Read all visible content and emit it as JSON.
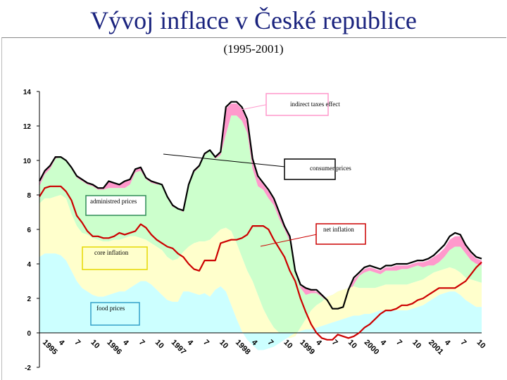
{
  "title": "Vývoj inflace v České republice",
  "subtitle": "(1995-2001)",
  "chart_data": {
    "type": "area",
    "x_ticks": [
      "1995",
      "4",
      "7",
      "10",
      "1996",
      "4",
      "7",
      "10",
      "1997",
      "4",
      "7",
      "10",
      "1998",
      "4",
      "7",
      "10",
      "1999",
      "4",
      "7",
      "10",
      "2000",
      "4",
      "7",
      "10",
      "2001",
      "4",
      "7",
      "10"
    ],
    "y_ticks": [
      "14",
      "12",
      "10",
      "8",
      "6",
      "4",
      "2",
      "0",
      "-2"
    ],
    "ylim": [
      -2,
      14
    ],
    "n_points": 84,
    "annotations": [
      "indirect taxes effect",
      "consumer prices",
      "administred prices",
      "net inflation",
      "core inflation",
      "food prices"
    ],
    "colors": {
      "food": "#ccffff",
      "core": "#ffffcc",
      "admin": "#ccffcc",
      "tax": "#ff99cc",
      "consumer": "#000000",
      "net": "#cc0000",
      "label_border_blue": "#33a0c8",
      "label_border_yellow": "#e6d800",
      "label_border_green": "#2e8b57",
      "label_border_pink": "#ff99cc",
      "label_border_red": "#cc0000"
    },
    "series": [
      {
        "name": "food prices",
        "values": [
          4.4,
          4.6,
          4.6,
          4.6,
          4.5,
          4.2,
          3.6,
          3,
          2.6,
          2.4,
          2.2,
          2.1,
          2.1,
          2.2,
          2.3,
          2.4,
          2.4,
          2.6,
          2.8,
          3,
          3,
          2.8,
          2.5,
          2.2,
          1.9,
          1.8,
          1.8,
          2.4,
          2.4,
          2.3,
          2.2,
          2.3,
          2.1,
          2.5,
          2.7,
          2.4,
          1.6,
          0.8,
          0.1,
          -0.4,
          -0.7,
          -1,
          -1,
          -0.9,
          -0.8,
          -0.6,
          -0.4,
          -0.2,
          0,
          0.1,
          0.2,
          0.2,
          0.3,
          0.4,
          0.5,
          0.6,
          0.7,
          0.8,
          0.9,
          1,
          1,
          1.1,
          1.1,
          1.2,
          1.3,
          1.3,
          1.3,
          1.3,
          1.3,
          1.3,
          1.4,
          1.5,
          1.6,
          1.8,
          2,
          2.2,
          2.3,
          2.4,
          2.4,
          2.2,
          1.9,
          1.7,
          1.5,
          1.5
        ]
      },
      {
        "name": "core inflation",
        "values": [
          7.5,
          7.8,
          7.8,
          7.9,
          8,
          7.8,
          6.9,
          6.2,
          5.8,
          5.7,
          5.5,
          5.4,
          5.3,
          5.3,
          5.4,
          5.4,
          5.5,
          5.6,
          5.6,
          5.5,
          5.4,
          5.2,
          5,
          4.8,
          4.4,
          4.2,
          4.3,
          4.7,
          5,
          5.2,
          5.3,
          5.3,
          5.4,
          5.7,
          6,
          6.1,
          5.9,
          5.2,
          4.4,
          3.6,
          3,
          2.2,
          1.4,
          0.8,
          0.3,
          0,
          -0.2,
          -0.3,
          -0.2,
          0.3,
          0.8,
          1.3,
          1.6,
          1.8,
          2.1,
          2.2,
          2.4,
          2.5,
          2.6,
          2.7,
          2.6,
          2.6,
          2.6,
          2.6,
          2.7,
          2.8,
          2.8,
          2.8,
          2.8,
          2.8,
          2.9,
          3,
          3.1,
          3.3,
          3.5,
          3.6,
          3.7,
          3.8,
          3.7,
          3.5,
          3.2,
          3.1,
          3,
          2.9
        ]
      },
      {
        "name": "administred prices",
        "values": [
          8.5,
          9.2,
          9.5,
          10.1,
          10.2,
          10,
          9.5,
          9,
          8.8,
          8.6,
          8.5,
          8.3,
          8.3,
          8.4,
          8.4,
          8.4,
          8.4,
          8.6,
          9.3,
          9.4,
          8.9,
          8.7,
          8.6,
          8.6,
          7.8,
          7.3,
          7.2,
          7,
          8.5,
          9.3,
          9.6,
          10.3,
          10.6,
          10.1,
          10.3,
          11.5,
          12.6,
          12.6,
          12.3,
          11.6,
          9.5,
          8.5,
          8.3,
          7.8,
          7.4,
          6.6,
          6,
          5.3,
          3.5,
          2.6,
          2.2,
          2.3,
          2.3,
          2.1,
          1.8,
          1.3,
          1.2,
          1.3,
          2.2,
          2.8,
          3.3,
          3.5,
          3.6,
          3.5,
          3.4,
          3.6,
          3.6,
          3.6,
          3.7,
          3.7,
          3.8,
          3.9,
          3.8,
          3.9,
          3.9,
          4.1,
          4.4,
          4.8,
          5,
          5,
          4.6,
          4.2,
          4,
          3.9
        ]
      },
      {
        "name": "indirect taxes effect",
        "values": [
          8.7,
          9.4,
          9.7,
          10.2,
          10.2,
          10,
          9.6,
          9.1,
          8.9,
          8.7,
          8.6,
          8.4,
          8.4,
          8.8,
          8.7,
          8.6,
          8.8,
          8.9,
          9.5,
          9.6,
          9,
          8.8,
          8.7,
          8.6,
          7.9,
          7.4,
          7.2,
          7.1,
          8.6,
          9.4,
          9.7,
          10.4,
          10.6,
          10.2,
          10.5,
          13,
          13.3,
          13.3,
          13,
          12.2,
          10,
          9,
          8.6,
          8.2,
          7.7,
          6.9,
          6.2,
          5.5,
          3.6,
          2.7,
          2.6,
          2.5,
          2.4,
          2.2,
          1.9,
          1.4,
          1.4,
          1.5,
          2.4,
          3.1,
          3.4,
          3.7,
          3.8,
          3.7,
          3.6,
          3.8,
          3.8,
          3.9,
          3.9,
          3.9,
          4,
          4.1,
          4.1,
          4.2,
          4.4,
          4.6,
          4.9,
          5.4,
          5.6,
          5.6,
          5,
          4.6,
          4.3,
          4.2
        ]
      },
      {
        "name": "consumer prices",
        "values": [
          8.8,
          9.4,
          9.7,
          10.2,
          10.2,
          10,
          9.6,
          9.1,
          8.9,
          8.7,
          8.6,
          8.4,
          8.4,
          8.8,
          8.7,
          8.6,
          8.8,
          8.9,
          9.5,
          9.6,
          9,
          8.8,
          8.7,
          8.6,
          7.9,
          7.4,
          7.2,
          7.1,
          8.6,
          9.4,
          9.7,
          10.4,
          10.6,
          10.2,
          10.5,
          13.1,
          13.4,
          13.4,
          13.1,
          12.4,
          10.1,
          9.1,
          8.7,
          8.3,
          7.8,
          7,
          6.2,
          5.6,
          3.6,
          2.8,
          2.6,
          2.5,
          2.5,
          2.2,
          1.9,
          1.4,
          1.4,
          1.5,
          2.5,
          3.2,
          3.5,
          3.8,
          3.9,
          3.8,
          3.7,
          3.9,
          3.9,
          4,
          4,
          4,
          4.1,
          4.2,
          4.2,
          4.3,
          4.5,
          4.8,
          5.1,
          5.6,
          5.8,
          5.7,
          5.1,
          4.7,
          4.4,
          4.3
        ]
      },
      {
        "name": "net inflation",
        "values": [
          7.9,
          8.4,
          8.5,
          8.5,
          8.5,
          8.2,
          7.7,
          6.8,
          6.4,
          5.9,
          5.6,
          5.6,
          5.5,
          5.5,
          5.6,
          5.8,
          5.7,
          5.8,
          5.9,
          6.3,
          6.1,
          5.7,
          5.4,
          5.2,
          5,
          4.9,
          4.6,
          4.4,
          4,
          3.7,
          3.6,
          4.2,
          4.2,
          4.2,
          5.2,
          5.3,
          5.4,
          5.4,
          5.5,
          5.7,
          6.2,
          6.2,
          6.2,
          6,
          5.4,
          4.9,
          4.4,
          3.6,
          3,
          2,
          1.2,
          0.5,
          0,
          -0.3,
          -0.4,
          -0.4,
          -0.1,
          -0.2,
          -0.3,
          -0.2,
          0,
          0.3,
          0.5,
          0.8,
          1.1,
          1.3,
          1.3,
          1.4,
          1.6,
          1.6,
          1.7,
          1.9,
          2,
          2.2,
          2.4,
          2.6,
          2.6,
          2.6,
          2.6,
          2.8,
          3,
          3.4,
          3.8,
          4.1
        ]
      }
    ]
  }
}
